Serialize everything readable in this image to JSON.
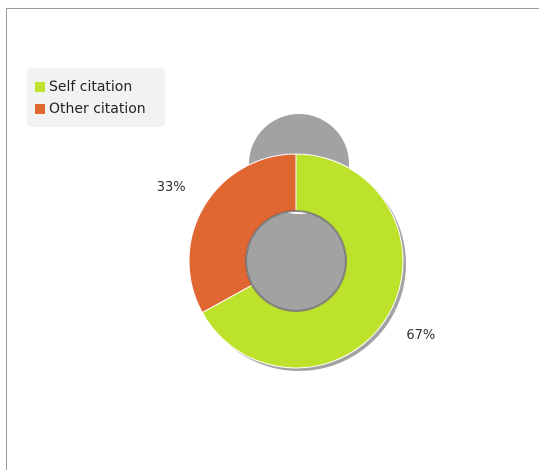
{
  "chart_data": {
    "type": "pie",
    "variant": "donut",
    "categories": [
      "Self citation",
      "Other citation"
    ],
    "values": [
      67,
      33
    ],
    "labels": [
      "67%",
      "33%"
    ],
    "colors": [
      "#bde22c",
      "#e06632"
    ],
    "legend_position": "top-left",
    "title": ""
  }
}
